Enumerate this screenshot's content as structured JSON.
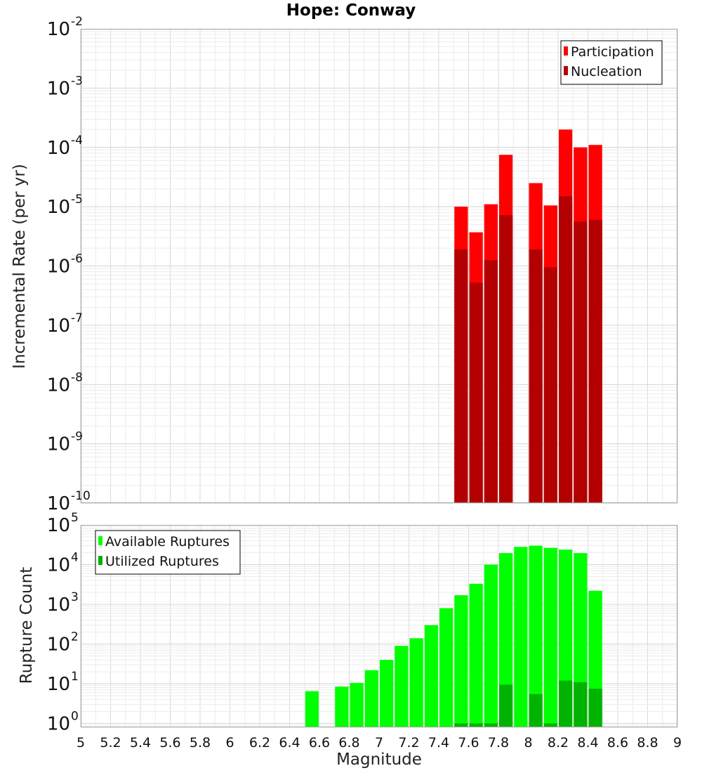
{
  "title": "Hope: Conway",
  "chart_data": [
    {
      "type": "bar",
      "name": "rate-panel",
      "ylabel": "Incremental Rate (per yr)",
      "xlabel": "Magnitude",
      "xlim": [
        5,
        9
      ],
      "ylim": [
        1e-10,
        0.01
      ],
      "yscale": "log",
      "grid": true,
      "legend_position": "top-right",
      "bin_width": 0.1,
      "y_ticks": [
        {
          "mantissa": "10",
          "exp": "-10",
          "value": 1e-10
        },
        {
          "mantissa": "10",
          "exp": "-9",
          "value": 1e-09
        },
        {
          "mantissa": "10",
          "exp": "-8",
          "value": 1e-08
        },
        {
          "mantissa": "10",
          "exp": "-7",
          "value": 1e-07
        },
        {
          "mantissa": "10",
          "exp": "-6",
          "value": 1e-06
        },
        {
          "mantissa": "10",
          "exp": "-5",
          "value": 1e-05
        },
        {
          "mantissa": "10",
          "exp": "-4",
          "value": 0.0001
        },
        {
          "mantissa": "10",
          "exp": "-3",
          "value": 0.001
        },
        {
          "mantissa": "10",
          "exp": "-2",
          "value": 0.01
        }
      ],
      "series": [
        {
          "name": "Participation",
          "color": "#ff0000",
          "x": [
            7.55,
            7.65,
            7.75,
            7.85,
            8.05,
            8.15,
            8.25,
            8.35,
            8.45
          ],
          "values": [
            1e-05,
            3.7e-06,
            1.1e-05,
            7.5e-05,
            2.5e-05,
            1.05e-05,
            0.0002,
            0.0001,
            0.00011
          ]
        },
        {
          "name": "Nucleation",
          "color": "#b30000",
          "x": [
            7.55,
            7.65,
            7.75,
            7.85,
            8.05,
            8.15,
            8.25,
            8.35,
            8.45
          ],
          "values": [
            1.9e-06,
            5.2e-07,
            1.25e-06,
            7.2e-06,
            1.9e-06,
            9.5e-07,
            1.5e-05,
            5.6e-06,
            6e-06
          ]
        }
      ]
    },
    {
      "type": "bar",
      "name": "count-panel",
      "ylabel": "Rupture Count",
      "xlabel": "Magnitude",
      "xlim": [
        5,
        9
      ],
      "ylim": [
        0.8,
        100000.0
      ],
      "yscale": "log",
      "grid": true,
      "legend_position": "top-left",
      "bin_width": 0.1,
      "x_ticks": [
        "5",
        "5.2",
        "5.4",
        "5.6",
        "5.8",
        "6",
        "6.2",
        "6.4",
        "6.6",
        "6.8",
        "7",
        "7.2",
        "7.4",
        "7.6",
        "7.8",
        "8",
        "8.2",
        "8.4",
        "8.6",
        "8.8",
        "9"
      ],
      "y_ticks": [
        {
          "mantissa": "10",
          "exp": "0",
          "value": 1
        },
        {
          "mantissa": "10",
          "exp": "1",
          "value": 10
        },
        {
          "mantissa": "10",
          "exp": "2",
          "value": 100
        },
        {
          "mantissa": "10",
          "exp": "3",
          "value": 1000
        },
        {
          "mantissa": "10",
          "exp": "4",
          "value": 10000
        },
        {
          "mantissa": "10",
          "exp": "5",
          "value": 100000
        }
      ],
      "series": [
        {
          "name": "Available Ruptures",
          "color": "#00ff00",
          "x": [
            6.55,
            6.75,
            6.85,
            6.95,
            7.05,
            7.15,
            7.25,
            7.35,
            7.45,
            7.55,
            7.65,
            7.75,
            7.85,
            7.95,
            8.05,
            8.15,
            8.25,
            8.35,
            8.45
          ],
          "values": [
            6.5,
            8.5,
            10.5,
            22,
            40,
            90,
            140,
            300,
            800,
            1700,
            3300,
            10000,
            19500,
            28000,
            30000,
            26500,
            24000,
            19500,
            2200
          ]
        },
        {
          "name": "Utilized Ruptures",
          "color": "#00b300",
          "x": [
            7.55,
            7.65,
            7.75,
            7.85,
            8.05,
            8.15,
            8.25,
            8.35,
            8.45
          ],
          "values": [
            1,
            1,
            1,
            9.5,
            5.5,
            1,
            12,
            11,
            7.5
          ]
        }
      ]
    }
  ]
}
